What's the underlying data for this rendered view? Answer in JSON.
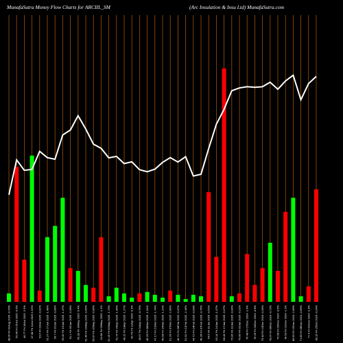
{
  "chart_data": {
    "type": "bar",
    "header_left": "MunafaSutra  Money Flow  Charts for ARCIIL_SM",
    "header_right": "(Arc Insulation  & Insu   Ltd) MunafaSutra.com",
    "grid": "vertical",
    "colors": {
      "up": "#00ff00",
      "down": "#ff0000",
      "price_line": "#ffffff",
      "grid": "#a0520d",
      "background": "#000000"
    },
    "ylim": [
      0,
      100
    ],
    "categories": [
      "38.05 Fri 01Aug 2025 -0.70%",
      "50.46 Fri 25Jul 2025 -0.6%",
      "46.77 Fri 18Jul 2025 -2.5%",
      "47.08 Fri 11Jul 2025 1.62%",
      "53.5 Fri 04Jul 2025 -0.02%",
      "51.27 Fri 27Jun 2025 -1.49%",
      "50.7 Fri 20Jun 2025 -0.09%",
      "59.32 Fri 13Jun 2025 -1.47%",
      "61.1 Fri 06Jun 2025 -3.28%",
      "66.18 Fri 30May 2025 -5.4%",
      "61.46 Fri 23May 2025 -3.69%",
      "56.07 Fri 16May 2025 -0.06%",
      "54.58 Fri 09May 2025 -1.1%",
      "51.19 Fri 02May 2025 -1.73%",
      "51.74 Fri 25Apr 2025 -1.49%",
      "49.15 Fri 18Apr 2025 -1.27%",
      "49.79 Fri 11Apr 2025 -0.3%",
      "46.97 Fri 04Apr 2025 -0.75%",
      "46.26 Fri 28Mar 2025 -1.54%",
      "47.17 Fri 21Mar 2025 -1.74%",
      "49.58 Fri 14Mar 2025 -1.22%",
      "51.26 Fri 07Mar 2025 -2.99%",
      "49.71 Fri 28Feb 2025 -0.47%",
      "51.61 Fri 21Feb 2025 -2.18%",
      "44.72 Fri 14Feb 2025 -0.03%",
      "45.36 Fri 07Feb 2025 -0.76%",
      "54.5 Fri 31Jan 2025 -0.51%",
      "63.14 Fri 24Jan 2025 -1.07%",
      "68.43 Fri 17Jan 2025 -3.07%",
      "75.05 Fri 10Jan 2025 -0.94%",
      "76.06 Fri 03Jan 2025 -0.21%",
      "76.48 Fri 27Dec 2024 -1.9%",
      "76.26 Fri 20Dec 2024 -0.8%",
      "76.48 Fri 13Dec 2024 -0.34%",
      "78.07 Fri 06Dec 2024 -0.72%",
      "75.58 Fri 29Nov 2024 -0.5%",
      "78.53 Fri 22Nov 2024 -1.2%",
      "80.55 Fri 15Nov 2024 -2.09%",
      "71.85 Fri 08Nov 2024 -0.69%",
      "77.6 Fri 01Nov 2024 -2.3%",
      "80.15 Fri 25Oct 2024 -0.24%"
    ],
    "series": [
      {
        "values": [
          3,
          48,
          15,
          52,
          4,
          23,
          27,
          37,
          12,
          11,
          6,
          5,
          23,
          2,
          5,
          3,
          1.5,
          3,
          3.5,
          2.5,
          1.5,
          4,
          2.5,
          1,
          2.5,
          2,
          39,
          16,
          83,
          2,
          3,
          17,
          6,
          12,
          21,
          11,
          32,
          37,
          2,
          5.5,
          40
        ],
        "colors": [
          "up",
          "down",
          "down",
          "up",
          "down",
          "up",
          "up",
          "up",
          "down",
          "up",
          "up",
          "down",
          "down",
          "up",
          "up",
          "up",
          "up",
          "down",
          "up",
          "up",
          "up",
          "down",
          "up",
          "up",
          "up",
          "up",
          "down",
          "down",
          "down",
          "up",
          "down",
          "down",
          "down",
          "down",
          "up",
          "down",
          "down",
          "up",
          "up",
          "down",
          "down"
        ],
        "price": [
          38.05,
          50.46,
          46.77,
          47.08,
          53.5,
          51.27,
          50.7,
          59.32,
          61.1,
          66.18,
          61.46,
          56.07,
          54.58,
          51.19,
          51.74,
          49.15,
          49.79,
          46.97,
          46.26,
          47.17,
          49.58,
          51.26,
          49.71,
          51.61,
          44.72,
          45.36,
          54.5,
          63.14,
          68.43,
          75.05,
          76.06,
          76.48,
          76.26,
          76.48,
          78.07,
          75.58,
          78.53,
          80.55,
          71.85,
          77.6,
          80.15
        ]
      }
    ]
  }
}
